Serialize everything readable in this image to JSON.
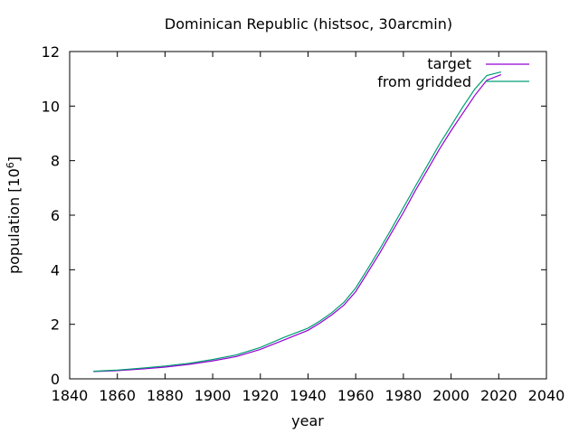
{
  "chart_data": {
    "type": "line",
    "title": "Dominican Republic (histsoc, 30arcmin)",
    "xlabel": "year",
    "ylabel_main": "population [10",
    "ylabel_exp": "6",
    "ylabel_end": "]",
    "xlim": [
      1840,
      2040
    ],
    "ylim": [
      0,
      12
    ],
    "x_ticks": [
      1840,
      1860,
      1880,
      1900,
      1920,
      1940,
      1960,
      1980,
      2000,
      2020,
      2040
    ],
    "y_ticks": [
      0,
      2,
      4,
      6,
      8,
      10,
      12
    ],
    "legend_position": "top-right",
    "grid": false,
    "series": [
      {
        "name": "target",
        "color": "#9400d3",
        "x": [
          1850,
          1860,
          1870,
          1880,
          1890,
          1900,
          1910,
          1920,
          1930,
          1940,
          1945,
          1950,
          1955,
          1960,
          1965,
          1970,
          1975,
          1980,
          1985,
          1990,
          1995,
          2000,
          2005,
          2010,
          2015,
          2021
        ],
        "y": [
          0.27,
          0.3,
          0.36,
          0.43,
          0.53,
          0.66,
          0.82,
          1.08,
          1.43,
          1.78,
          2.05,
          2.35,
          2.7,
          3.2,
          3.9,
          4.6,
          5.35,
          6.1,
          6.9,
          7.65,
          8.4,
          9.1,
          9.75,
          10.4,
          10.95,
          11.15
        ]
      },
      {
        "name": "from gridded",
        "color": "#009e73",
        "x": [
          1850,
          1860,
          1870,
          1880,
          1890,
          1900,
          1910,
          1920,
          1930,
          1940,
          1945,
          1950,
          1955,
          1960,
          1965,
          1970,
          1975,
          1980,
          1985,
          1990,
          1995,
          2000,
          2005,
          2010,
          2015,
          2021
        ],
        "y": [
          0.28,
          0.32,
          0.39,
          0.47,
          0.57,
          0.71,
          0.88,
          1.15,
          1.52,
          1.86,
          2.12,
          2.43,
          2.8,
          3.33,
          4.03,
          4.75,
          5.5,
          6.28,
          7.06,
          7.82,
          8.58,
          9.28,
          9.98,
          10.63,
          11.12,
          11.25
        ]
      }
    ]
  }
}
